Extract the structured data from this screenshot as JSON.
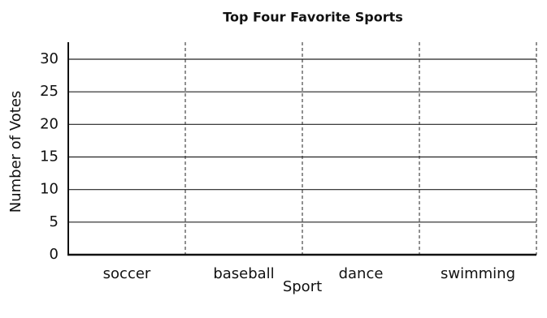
{
  "chart_data": {
    "type": "bar",
    "title": "Top Four Favorite Sports",
    "categories": [
      "soccer",
      "baseball",
      "dance",
      "swimming"
    ],
    "x_label": "Sport",
    "y_label": "Number of Votes",
    "ylim": [
      0,
      30
    ],
    "yticks": [
      0,
      5,
      10,
      15,
      20,
      25,
      30
    ],
    "grid": true
  }
}
